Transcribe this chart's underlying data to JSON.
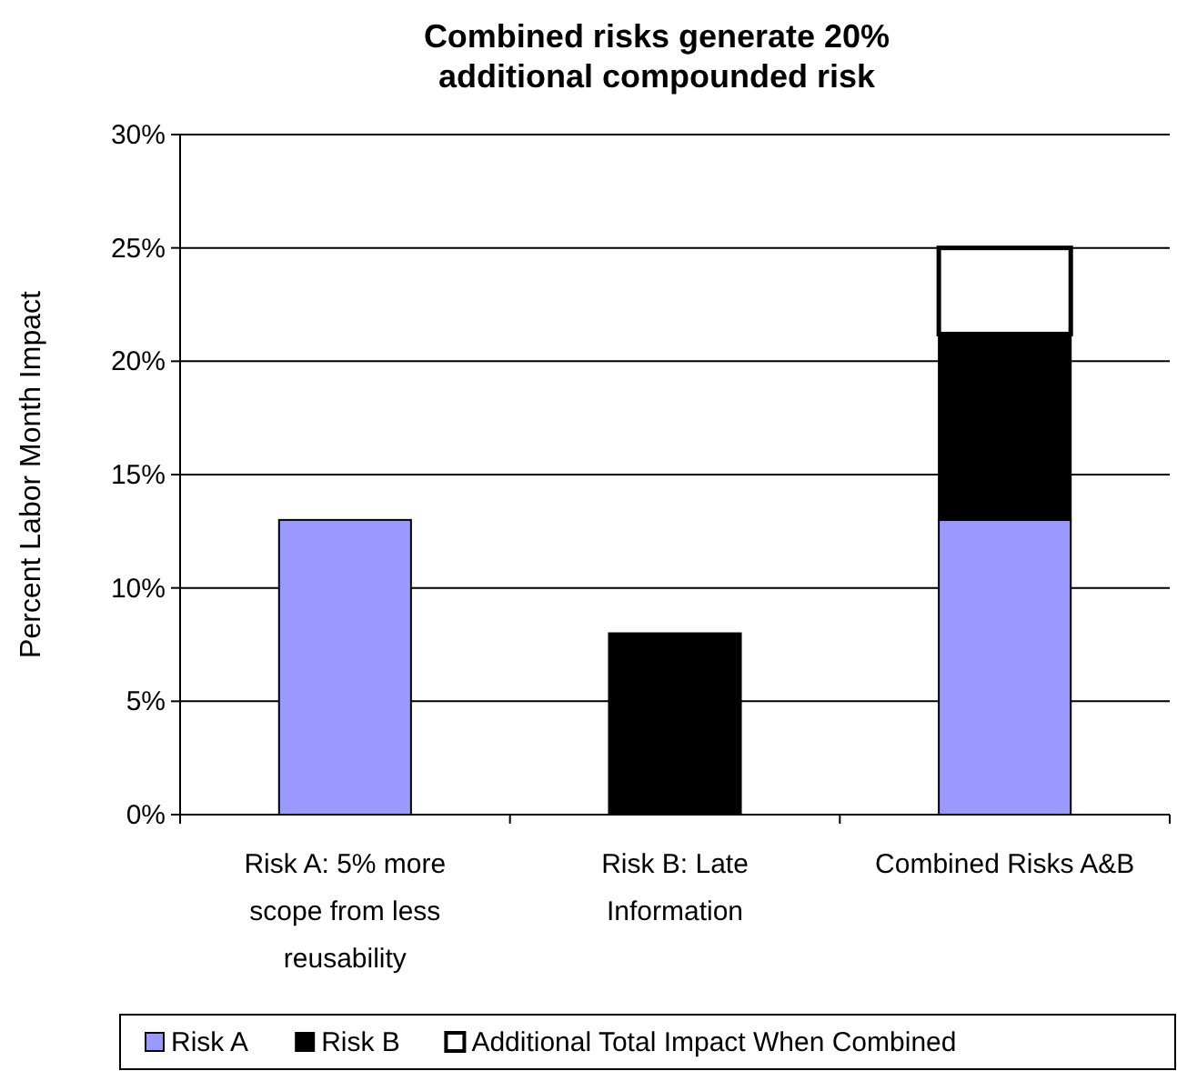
{
  "chart_data": {
    "type": "bar",
    "title": "Combined risks generate 20% additional compounded risk",
    "ylabel": "Percent Labor Month Impact",
    "categories": [
      "Risk A: 5% more scope from less reusability",
      "Risk B: Late Information",
      "Combined Risks A&B"
    ],
    "stacked": true,
    "series": [
      {
        "name": "Risk A",
        "color": "#9999ff",
        "values": [
          13,
          null,
          13
        ]
      },
      {
        "name": "Risk B",
        "color": "#000000",
        "values": [
          null,
          8,
          8.2
        ]
      },
      {
        "name": "Additional Total Impact When Combined",
        "color": "#ffffff",
        "values": [
          null,
          null,
          3.8
        ]
      }
    ],
    "ylim": [
      0,
      30
    ],
    "yticks": [
      {
        "value": 0,
        "label": "0%"
      },
      {
        "value": 5,
        "label": "5%"
      },
      {
        "value": 10,
        "label": "10%"
      },
      {
        "value": 15,
        "label": "15%"
      },
      {
        "value": 20,
        "label": "20%"
      },
      {
        "value": 25,
        "label": "25%"
      },
      {
        "value": 30,
        "label": "30%"
      }
    ],
    "grid": "y",
    "legend": "bottom"
  }
}
